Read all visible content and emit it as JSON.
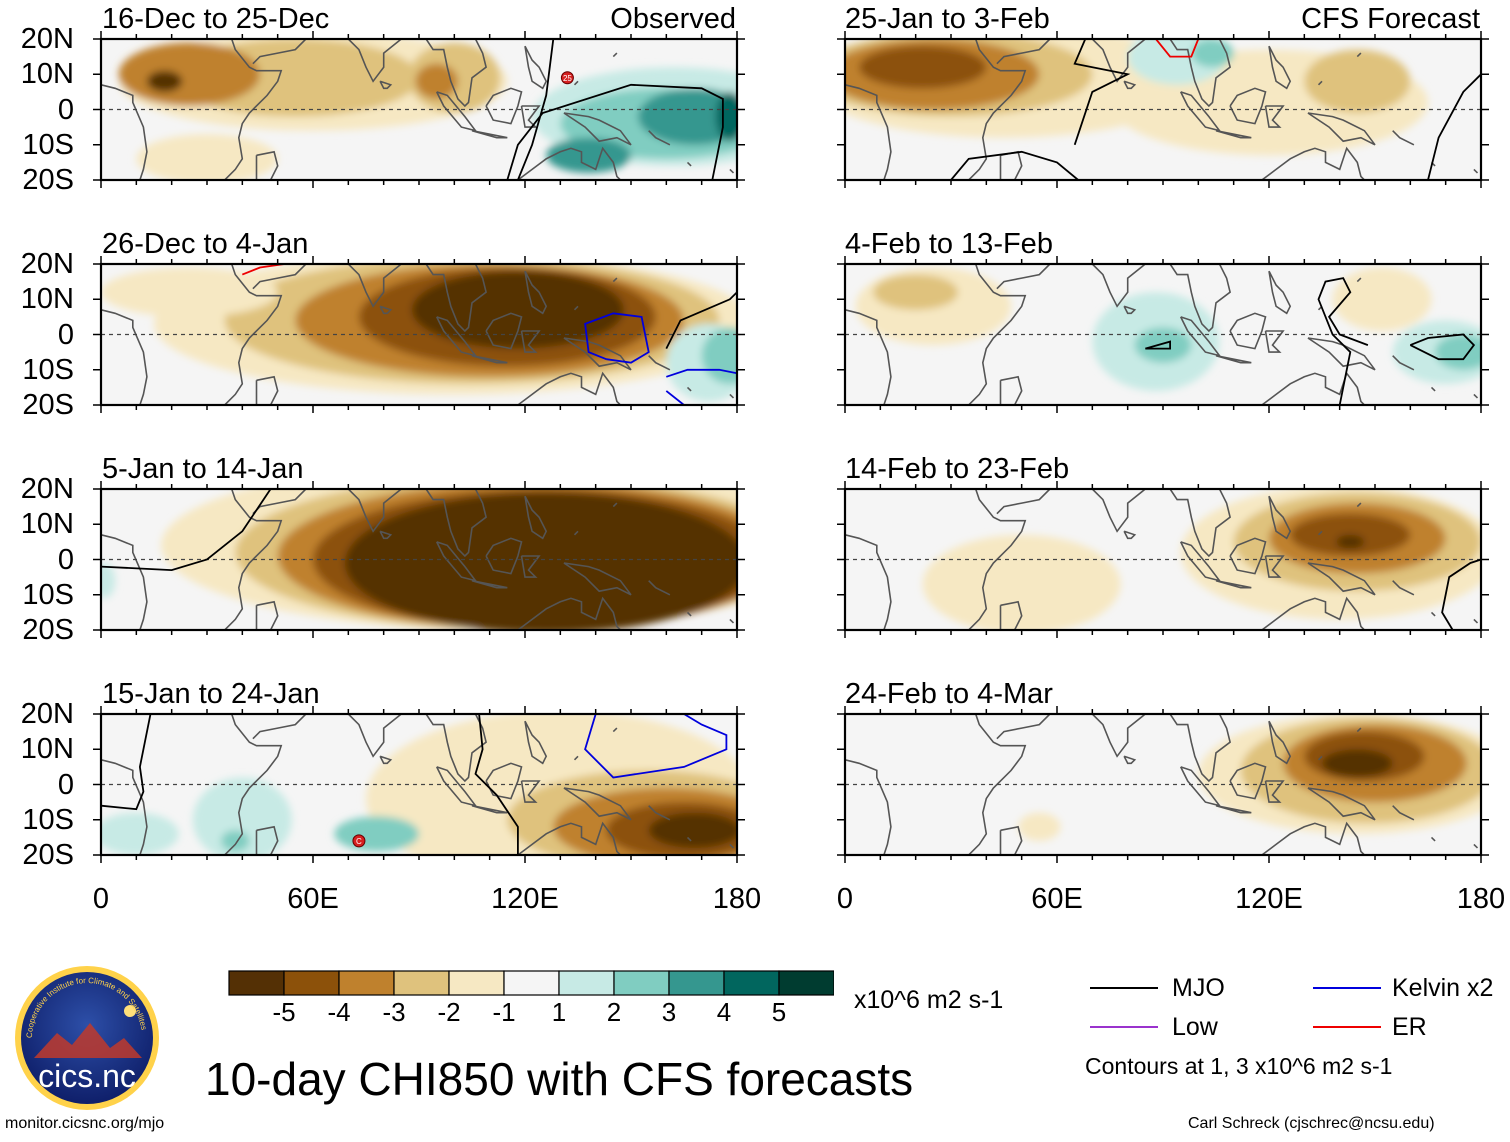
{
  "title": "10-day CHI850 with CFS forecasts",
  "source_url": "monitor.cicsnc.org/mjo",
  "credit": "Carl Schreck (cjschrec@ncsu.edu)",
  "logo_text": "cics.nc",
  "logo_ring_text": "Cooperative Institute for Climate and Satellites",
  "column_headers": {
    "left": "Observed",
    "right": "CFS Forecast"
  },
  "lat_ticks": [
    "20N",
    "10N",
    "0",
    "10S",
    "20S"
  ],
  "lon_ticks": [
    "0",
    "60E",
    "120E",
    "180"
  ],
  "panels": [
    {
      "id": "p1",
      "period": "16-Dec to 25-Dec",
      "column": "Observed"
    },
    {
      "id": "p2",
      "period": "26-Dec to 4-Jan",
      "column": "Observed"
    },
    {
      "id": "p3",
      "period": "5-Jan to 14-Jan",
      "column": "Observed"
    },
    {
      "id": "p4",
      "period": "15-Jan to 24-Jan",
      "column": "Observed"
    },
    {
      "id": "p5",
      "period": "25-Jan to 3-Feb",
      "column": "CFS Forecast"
    },
    {
      "id": "p6",
      "period": "4-Feb to 13-Feb",
      "column": "CFS Forecast"
    },
    {
      "id": "p7",
      "period": "14-Feb to 23-Feb",
      "column": "CFS Forecast"
    },
    {
      "id": "p8",
      "period": "24-Feb to 4-Mar",
      "column": "CFS Forecast"
    }
  ],
  "storm_markers": [
    {
      "panel": "p1",
      "label": "25"
    },
    {
      "panel": "p4",
      "label": "C"
    }
  ],
  "colorbar": {
    "colors": [
      "#543005",
      "#8c510a",
      "#bf812d",
      "#dfc27d",
      "#f6e8c3",
      "#f5f5f5",
      "#c7eae5",
      "#80cdc1",
      "#35978f",
      "#01665e",
      "#003c30"
    ],
    "labels": [
      "-5",
      "-4",
      "-3",
      "-2",
      "-1",
      "1",
      "2",
      "3",
      "4",
      "5"
    ],
    "units": "x10^6 m2 s-1"
  },
  "legend": {
    "items": [
      {
        "name": "MJO",
        "color": "#000000"
      },
      {
        "name": "Kelvin x2",
        "color": "#0000dd"
      },
      {
        "name": "Low",
        "color": "#9a32cd"
      },
      {
        "name": "ER",
        "color": "#ee0000"
      }
    ],
    "note": "Contours at 1, 3 x10^6 m2 s-1"
  }
}
